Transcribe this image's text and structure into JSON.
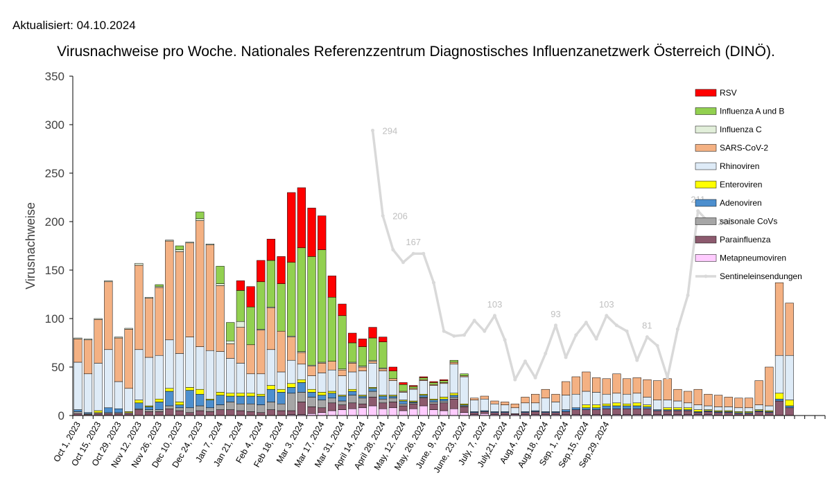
{
  "header": {
    "updated": "Aktualisiert: 04.10.2024",
    "title": "Virusnachweise pro Woche. Nationales Referenzzentrum Diagnostisches Influenzanetzwerk Österreich (DINÖ)."
  },
  "chart_data": {
    "type": "bar",
    "stacked": true,
    "ylabel": "Virusnachweise",
    "xlabel": "",
    "ylim": [
      0,
      350
    ],
    "yticks": [
      0,
      50,
      100,
      150,
      200,
      250,
      300,
      350
    ],
    "grid": false,
    "legend_position": "right",
    "week_count": 74,
    "x_tick_labels": [
      "Oct 1, 2023",
      "Oct 15, 2023",
      "Oct 29, 2023",
      "Nov 12, 2023",
      "Nov 26, 2023",
      "Dec 10, 2023",
      "Dec 24, 2023",
      "Jan 7, 2024",
      "Jan 21, 2024",
      "Feb 4, 2024",
      "Feb 18, 2024",
      "Mar 3, 2024",
      "Mar 17, 2024",
      "Mar 31, 2024",
      "April 14, 2024",
      "April 28, 2024",
      "May, 12, 2024",
      "May, 26, 2024",
      "June, 9, 2024",
      "June, 23, 2024",
      "July, 7, 2024",
      "July,21, 2024",
      "Aug,4, 2024",
      "Aug,18, 2024",
      "Sep, 1, 2024",
      "Sep,15, 2024",
      "Sep,29, 2024"
    ],
    "series": [
      {
        "name": "Metapneumoviren",
        "color": "#ffccff",
        "values": [
          0,
          0,
          0,
          0,
          0,
          0,
          0,
          0,
          0,
          0,
          0,
          0,
          0,
          0,
          0,
          0,
          0,
          0,
          0,
          0,
          0,
          1,
          1,
          2,
          3,
          5,
          6,
          7,
          8,
          10,
          7,
          8,
          5,
          7,
          10,
          6,
          5,
          7,
          3,
          1,
          2,
          1,
          1,
          1,
          1,
          1,
          1,
          1,
          1,
          1,
          1,
          1,
          1,
          1,
          1,
          1,
          1,
          1,
          1,
          1,
          1,
          1,
          1,
          0,
          0,
          0,
          0,
          0,
          0,
          0,
          0,
          0,
          0,
          0
        ]
      },
      {
        "name": "Parainfluenza",
        "color": "#8c5a6e",
        "values": [
          2,
          1,
          2,
          2,
          2,
          2,
          6,
          4,
          4,
          7,
          5,
          3,
          5,
          4,
          6,
          6,
          5,
          4,
          3,
          6,
          5,
          4,
          13,
          7,
          5,
          8,
          5,
          6,
          4,
          9,
          6,
          6,
          5,
          5,
          8,
          6,
          8,
          10,
          6,
          2,
          2,
          2,
          2,
          1,
          2,
          3,
          2,
          2,
          3,
          5,
          5,
          5,
          6,
          6,
          6,
          6,
          6,
          4,
          4,
          4,
          4,
          2,
          3,
          3,
          3,
          2,
          2,
          4,
          3,
          15,
          8,
          0,
          0,
          0
        ]
      },
      {
        "name": "saisonale CoVs",
        "color": "#a6a6a6",
        "values": [
          2,
          1,
          1,
          1,
          1,
          1,
          1,
          2,
          2,
          3,
          3,
          5,
          5,
          4,
          5,
          8,
          7,
          8,
          8,
          8,
          7,
          18,
          10,
          10,
          8,
          5,
          4,
          8,
          6,
          6,
          4,
          4,
          2,
          1,
          1,
          2,
          2,
          2,
          1,
          0,
          0,
          0,
          0,
          0,
          0,
          0,
          0,
          0,
          0,
          0,
          0,
          0,
          0,
          0,
          0,
          0,
          0,
          0,
          0,
          0,
          0,
          0,
          0,
          0,
          0,
          0,
          0,
          0,
          0,
          0,
          0,
          0,
          0,
          0
        ]
      },
      {
        "name": "Adenoviren",
        "color": "#4d8fce",
        "values": [
          2,
          1,
          0,
          5,
          4,
          0,
          6,
          3,
          8,
          15,
          3,
          18,
          12,
          8,
          10,
          6,
          8,
          8,
          9,
          13,
          12,
          6,
          10,
          5,
          5,
          5,
          5,
          4,
          2,
          3,
          3,
          2,
          3,
          1,
          2,
          2,
          2,
          2,
          1,
          1,
          1,
          1,
          1,
          0,
          1,
          1,
          1,
          1,
          2,
          2,
          2,
          2,
          3,
          3,
          3,
          3,
          2,
          1,
          1,
          1,
          1,
          1,
          1,
          1,
          1,
          1,
          1,
          1,
          1,
          2,
          2,
          0,
          0,
          0
        ]
      },
      {
        "name": "Enteroviren",
        "color": "#ffff00",
        "values": [
          0,
          0,
          2,
          0,
          0,
          1,
          3,
          1,
          3,
          3,
          3,
          3,
          5,
          1,
          3,
          3,
          3,
          3,
          2,
          4,
          3,
          4,
          3,
          3,
          3,
          2,
          1,
          2,
          1,
          1,
          1,
          1,
          1,
          1,
          1,
          1,
          2,
          2,
          1,
          0,
          0,
          0,
          0,
          0,
          0,
          0,
          0,
          0,
          0,
          0,
          3,
          3,
          2,
          3,
          2,
          3,
          2,
          0,
          2,
          2,
          2,
          2,
          1,
          1,
          1,
          1,
          1,
          1,
          1,
          6,
          6,
          0,
          0,
          0
        ]
      },
      {
        "name": "Rhinoviren",
        "color": "#deebf7",
        "values": [
          49,
          40,
          49,
          60,
          28,
          24,
          52,
          50,
          45,
          50,
          50,
          52,
          44,
          50,
          42,
          36,
          31,
          20,
          21,
          37,
          18,
          24,
          16,
          14,
          20,
          22,
          20,
          18,
          25,
          25,
          25,
          15,
          8,
          12,
          14,
          14,
          14,
          30,
          28,
          12,
          12,
          8,
          7,
          6,
          9,
          8,
          14,
          10,
          15,
          14,
          14,
          13,
          10,
          10,
          10,
          10,
          8,
          10,
          8,
          7,
          5,
          5,
          4,
          4,
          4,
          4,
          4,
          5,
          5,
          39,
          46,
          0,
          0,
          0
        ]
      },
      {
        "name": "SARS-CoV-2",
        "color": "#f4b183",
        "values": [
          24,
          35,
          45,
          70,
          45,
          61,
          87,
          61,
          70,
          102,
          105,
          97,
          130,
          109,
          68,
          15,
          37,
          30,
          45,
          43,
          42,
          24,
          12,
          10,
          10,
          9,
          6,
          9,
          4,
          2,
          2,
          2,
          1,
          1,
          1,
          1,
          1,
          2,
          1,
          2,
          3,
          3,
          3,
          4,
          6,
          9,
          9,
          8,
          14,
          18,
          20,
          15,
          16,
          20,
          16,
          16,
          18,
          20,
          22,
          12,
          12,
          16,
          12,
          12,
          10,
          10,
          10,
          25,
          40,
          75,
          54,
          0,
          0,
          0
        ]
      },
      {
        "name": "Influenza C",
        "color": "#e2efda",
        "values": [
          1,
          1,
          1,
          1,
          1,
          1,
          2,
          1,
          1,
          1,
          2,
          1,
          2,
          1,
          2,
          3,
          6,
          0,
          1,
          1,
          0,
          1,
          1,
          1,
          1,
          0,
          1,
          1,
          1,
          1,
          1,
          0,
          0,
          0,
          0,
          0,
          0,
          0,
          0,
          0,
          0,
          0,
          0,
          0,
          0,
          0,
          0,
          0,
          0,
          0,
          0,
          0,
          0,
          0,
          0,
          0,
          0,
          0,
          0,
          0,
          0,
          0,
          0,
          0,
          0,
          0,
          0,
          0,
          0,
          0,
          0,
          0,
          0,
          0
        ]
      },
      {
        "name": "Influenza A und B",
        "color": "#92d050",
        "values": [
          0,
          0,
          0,
          0,
          0,
          0,
          0,
          0,
          2,
          0,
          4,
          0,
          7,
          0,
          18,
          19,
          32,
          39,
          49,
          48,
          49,
          76,
          107,
          112,
          116,
          66,
          55,
          20,
          20,
          23,
          27,
          8,
          7,
          2,
          2,
          2,
          2,
          2,
          2,
          0,
          0,
          0,
          0,
          0,
          0,
          0,
          0,
          0,
          0,
          0,
          0,
          0,
          0,
          0,
          0,
          0,
          0,
          0,
          0,
          0,
          0,
          0,
          0,
          0,
          0,
          0,
          0,
          0,
          0,
          0,
          0,
          0,
          0,
          0
        ]
      },
      {
        "name": "RSV",
        "color": "#ff0000",
        "values": [
          0,
          0,
          0,
          0,
          0,
          0,
          0,
          0,
          0,
          0,
          0,
          0,
          0,
          0,
          0,
          0,
          10,
          21,
          22,
          22,
          28,
          72,
          62,
          50,
          35,
          22,
          12,
          10,
          8,
          11,
          5,
          4,
          2,
          1,
          1,
          1,
          1,
          0,
          0,
          0,
          0,
          0,
          0,
          0,
          0,
          0,
          0,
          0,
          0,
          0,
          0,
          0,
          0,
          0,
          0,
          0,
          0,
          0,
          0,
          0,
          0,
          0,
          0,
          0,
          0,
          0,
          0,
          0,
          0,
          0,
          0,
          0,
          0,
          0
        ]
      }
    ],
    "line_series": {
      "name": "Sentineleinsendungen",
      "color": "#d9d9d9",
      "start_index": 29,
      "values": [
        294,
        206,
        171,
        158,
        167,
        167,
        137,
        87,
        82,
        83,
        98,
        87,
        103,
        78,
        37,
        56,
        39,
        64,
        93,
        60,
        83,
        96,
        79,
        103,
        93,
        87,
        57,
        81,
        72,
        39,
        89,
        124,
        211,
        200
      ],
      "labeled_values": [
        294,
        206,
        167,
        103,
        93,
        103,
        81,
        211,
        200
      ]
    }
  }
}
